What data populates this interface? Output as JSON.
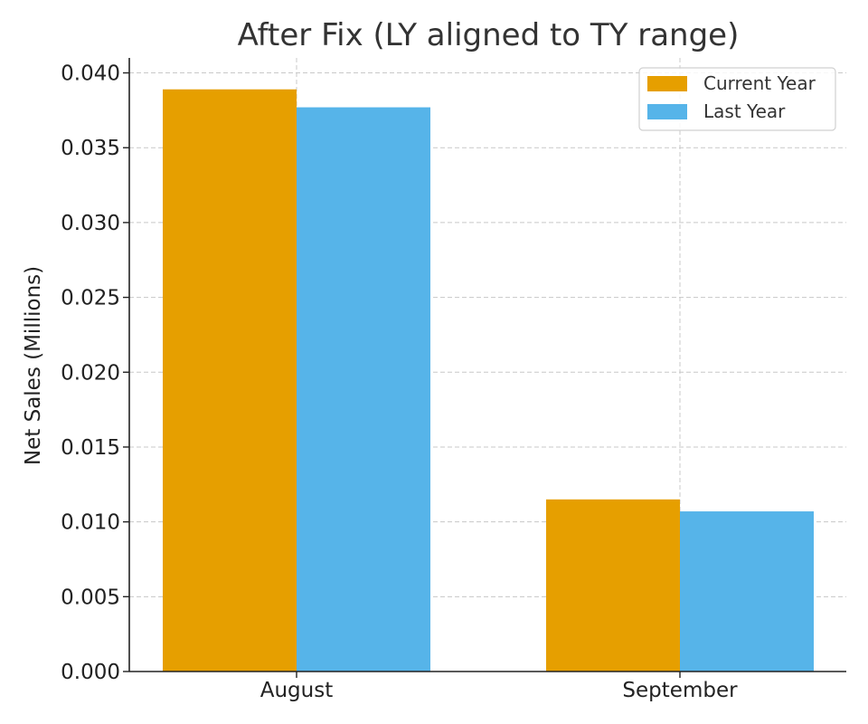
{
  "chart_data": {
    "type": "bar",
    "title": "After Fix (LY aligned to TY range)",
    "xlabel": "",
    "ylabel": "Net Sales (Millions)",
    "categories": [
      "August",
      "September"
    ],
    "series": [
      {
        "name": "Current Year",
        "values": [
          0.0389,
          0.0115
        ],
        "color": "#E69F00"
      },
      {
        "name": "Last Year",
        "values": [
          0.0377,
          0.0107
        ],
        "color": "#56B4E9"
      }
    ],
    "ylim": [
      0.0,
      0.041
    ],
    "yticks": [
      "0.000",
      "0.005",
      "0.010",
      "0.015",
      "0.020",
      "0.025",
      "0.030",
      "0.035",
      "0.040"
    ],
    "grid": true,
    "legend_position": "top-right"
  }
}
